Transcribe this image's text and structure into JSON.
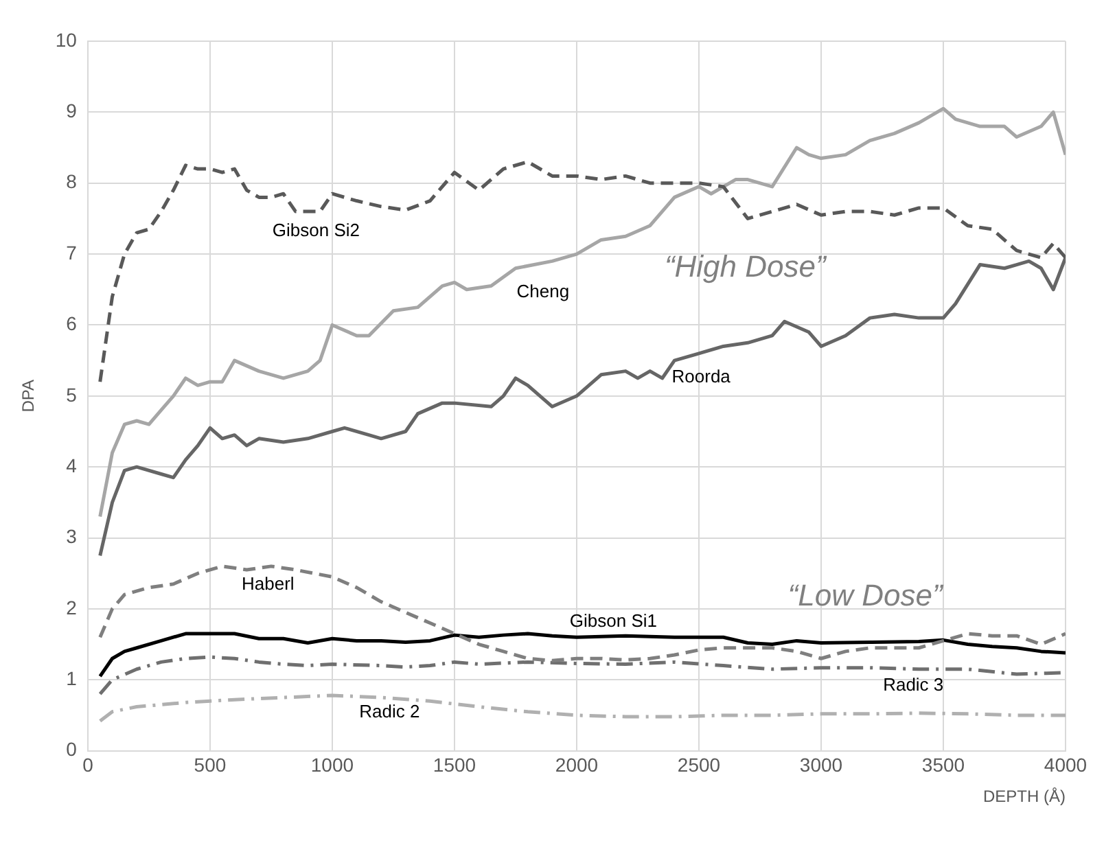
{
  "chart_data": {
    "type": "line",
    "xlabel": "DEPTH (Å)",
    "ylabel": "DPA",
    "xlim": [
      0,
      4000
    ],
    "xticks": [
      0,
      500,
      1000,
      1500,
      2000,
      2500,
      3000,
      3500,
      4000
    ],
    "ylim": [
      0,
      10
    ],
    "yticks": [
      0,
      1,
      2,
      3,
      4,
      5,
      6,
      7,
      8,
      9,
      10
    ],
    "grid": true,
    "legend": false,
    "marker": "none",
    "annotations": [
      "“High Dose”",
      "“Low Dose”"
    ],
    "series": [
      {
        "name": "Gibson Si2",
        "color": "#595959",
        "line_style": "dashed",
        "x": [
          50,
          100,
          150,
          200,
          250,
          300,
          350,
          400,
          450,
          500,
          550,
          600,
          650,
          700,
          750,
          800,
          850,
          900,
          950,
          1000,
          1100,
          1200,
          1300,
          1400,
          1500,
          1600,
          1700,
          1800,
          1900,
          2000,
          2100,
          2200,
          2300,
          2400,
          2500,
          2600,
          2700,
          2800,
          2900,
          3000,
          3100,
          3200,
          3300,
          3400,
          3500,
          3600,
          3700,
          3800,
          3900,
          3950,
          4000
        ],
        "values": [
          5.2,
          6.4,
          7.0,
          7.3,
          7.35,
          7.6,
          7.9,
          8.25,
          8.2,
          8.2,
          8.15,
          8.2,
          7.9,
          7.8,
          7.8,
          7.85,
          7.6,
          7.6,
          7.6,
          7.85,
          7.75,
          7.67,
          7.62,
          7.75,
          8.15,
          7.9,
          8.2,
          8.3,
          8.1,
          8.1,
          8.05,
          8.1,
          8.0,
          8.0,
          8.0,
          7.95,
          7.5,
          7.6,
          7.7,
          7.55,
          7.6,
          7.6,
          7.55,
          7.65,
          7.65,
          7.4,
          7.35,
          7.05,
          6.95,
          7.15,
          6.95
        ]
      },
      {
        "name": "Cheng",
        "color": "#a6a6a6",
        "line_style": "solid",
        "x": [
          50,
          100,
          150,
          200,
          250,
          300,
          350,
          400,
          450,
          500,
          550,
          600,
          700,
          800,
          900,
          950,
          1000,
          1100,
          1150,
          1250,
          1350,
          1450,
          1500,
          1550,
          1650,
          1750,
          1900,
          2000,
          2100,
          2200,
          2300,
          2400,
          2500,
          2550,
          2650,
          2700,
          2800,
          2900,
          2950,
          3000,
          3100,
          3200,
          3300,
          3400,
          3500,
          3550,
          3650,
          3750,
          3800,
          3900,
          3950,
          4000
        ],
        "values": [
          3.3,
          4.2,
          4.6,
          4.65,
          4.6,
          4.8,
          5.0,
          5.25,
          5.15,
          5.2,
          5.2,
          5.5,
          5.35,
          5.25,
          5.35,
          5.5,
          6.0,
          5.85,
          5.85,
          6.2,
          6.25,
          6.55,
          6.6,
          6.5,
          6.55,
          6.8,
          6.9,
          7.0,
          7.2,
          7.25,
          7.4,
          7.8,
          7.95,
          7.85,
          8.05,
          8.05,
          7.95,
          8.5,
          8.4,
          8.35,
          8.4,
          8.6,
          8.7,
          8.85,
          9.05,
          8.9,
          8.8,
          8.8,
          8.65,
          8.8,
          9.0,
          8.4
        ]
      },
      {
        "name": "Roorda",
        "color": "#666666",
        "line_style": "solid",
        "x": [
          50,
          100,
          150,
          200,
          300,
          350,
          400,
          450,
          500,
          550,
          600,
          650,
          700,
          800,
          900,
          1000,
          1050,
          1150,
          1200,
          1300,
          1350,
          1450,
          1500,
          1650,
          1700,
          1750,
          1800,
          1900,
          2000,
          2050,
          2100,
          2200,
          2250,
          2300,
          2350,
          2400,
          2500,
          2600,
          2700,
          2800,
          2850,
          2950,
          3000,
          3100,
          3200,
          3300,
          3400,
          3500,
          3550,
          3650,
          3750,
          3800,
          3850,
          3900,
          3950,
          4000
        ],
        "values": [
          2.75,
          3.5,
          3.95,
          4.0,
          3.9,
          3.85,
          4.1,
          4.3,
          4.55,
          4.4,
          4.45,
          4.3,
          4.4,
          4.35,
          4.4,
          4.5,
          4.55,
          4.45,
          4.4,
          4.5,
          4.75,
          4.9,
          4.9,
          4.85,
          5.0,
          5.25,
          5.15,
          4.85,
          5.0,
          5.15,
          5.3,
          5.35,
          5.25,
          5.35,
          5.25,
          5.5,
          5.6,
          5.7,
          5.75,
          5.85,
          6.05,
          5.9,
          5.7,
          5.85,
          6.1,
          6.15,
          6.1,
          6.1,
          6.3,
          6.85,
          6.8,
          6.85,
          6.9,
          6.8,
          6.5,
          6.95
        ]
      },
      {
        "name": "Haberl",
        "color": "#7f7f7f",
        "line_style": "dashed",
        "x": [
          50,
          100,
          150,
          250,
          350,
          450,
          550,
          650,
          750,
          850,
          1000,
          1100,
          1200,
          1300,
          1400,
          1500,
          1600,
          1700,
          1800,
          1900,
          2000,
          2100,
          2200,
          2300,
          2400,
          2500,
          2600,
          2700,
          2800,
          2900,
          3000,
          3100,
          3200,
          3300,
          3400,
          3500,
          3600,
          3700,
          3800,
          3900,
          4000
        ],
        "values": [
          1.6,
          2.0,
          2.2,
          2.3,
          2.35,
          2.5,
          2.6,
          2.55,
          2.6,
          2.55,
          2.45,
          2.3,
          2.1,
          1.95,
          1.8,
          1.65,
          1.5,
          1.4,
          1.3,
          1.27,
          1.3,
          1.3,
          1.28,
          1.3,
          1.35,
          1.42,
          1.45,
          1.45,
          1.45,
          1.4,
          1.3,
          1.4,
          1.45,
          1.45,
          1.45,
          1.55,
          1.65,
          1.62,
          1.62,
          1.5,
          1.65
        ]
      },
      {
        "name": "Gibson Si1",
        "color": "#000000",
        "line_style": "solid",
        "x": [
          50,
          100,
          150,
          200,
          300,
          400,
          500,
          600,
          700,
          800,
          900,
          1000,
          1100,
          1200,
          1300,
          1400,
          1500,
          1600,
          1700,
          1800,
          1900,
          2000,
          2200,
          2400,
          2600,
          2700,
          2800,
          2900,
          3000,
          3200,
          3400,
          3500,
          3600,
          3700,
          3800,
          3900,
          4000
        ],
        "values": [
          1.05,
          1.3,
          1.4,
          1.45,
          1.55,
          1.65,
          1.65,
          1.65,
          1.58,
          1.58,
          1.52,
          1.58,
          1.55,
          1.55,
          1.53,
          1.55,
          1.63,
          1.6,
          1.63,
          1.65,
          1.62,
          1.6,
          1.62,
          1.6,
          1.6,
          1.52,
          1.5,
          1.55,
          1.52,
          1.53,
          1.54,
          1.56,
          1.5,
          1.47,
          1.45,
          1.4,
          1.38
        ]
      },
      {
        "name": "Radic 3",
        "color": "#6f6f6f",
        "line_style": "dashdot",
        "x": [
          50,
          100,
          200,
          300,
          400,
          500,
          600,
          700,
          800,
          900,
          1000,
          1200,
          1300,
          1400,
          1500,
          1600,
          1800,
          2000,
          2200,
          2400,
          2600,
          2800,
          3000,
          3200,
          3400,
          3600,
          3800,
          4000
        ],
        "values": [
          0.8,
          1.0,
          1.15,
          1.25,
          1.3,
          1.32,
          1.3,
          1.25,
          1.22,
          1.2,
          1.22,
          1.2,
          1.18,
          1.2,
          1.25,
          1.22,
          1.25,
          1.23,
          1.22,
          1.25,
          1.2,
          1.15,
          1.17,
          1.17,
          1.15,
          1.15,
          1.08,
          1.1
        ]
      },
      {
        "name": "Radic 2",
        "color": "#b0b0b0",
        "line_style": "dashdot",
        "x": [
          50,
          100,
          200,
          300,
          400,
          500,
          600,
          800,
          1000,
          1200,
          1400,
          1600,
          1800,
          2000,
          2200,
          2400,
          2600,
          2800,
          3000,
          3200,
          3400,
          3600,
          3800,
          4000
        ],
        "values": [
          0.42,
          0.55,
          0.62,
          0.65,
          0.68,
          0.7,
          0.72,
          0.75,
          0.78,
          0.75,
          0.7,
          0.62,
          0.55,
          0.5,
          0.48,
          0.48,
          0.5,
          0.5,
          0.52,
          0.52,
          0.53,
          0.52,
          0.5,
          0.5
        ]
      }
    ]
  }
}
